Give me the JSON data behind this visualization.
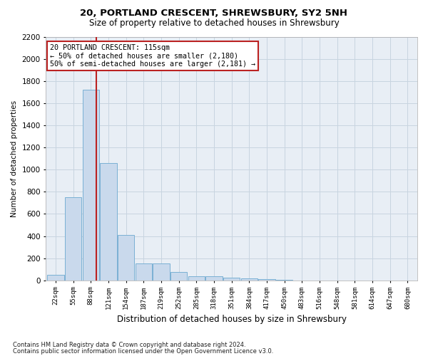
{
  "title1": "20, PORTLAND CRESCENT, SHREWSBURY, SY2 5NH",
  "title2": "Size of property relative to detached houses in Shrewsbury",
  "xlabel": "Distribution of detached houses by size in Shrewsbury",
  "ylabel": "Number of detached properties",
  "annotation_title": "20 PORTLAND CRESCENT: 115sqm",
  "annotation_line1": "← 50% of detached houses are smaller (2,180)",
  "annotation_line2": "50% of semi-detached houses are larger (2,181) →",
  "footer1": "Contains HM Land Registry data © Crown copyright and database right 2024.",
  "footer2": "Contains public sector information licensed under the Open Government Licence v3.0.",
  "categories": [
    "22sqm",
    "55sqm",
    "88sqm",
    "121sqm",
    "154sqm",
    "187sqm",
    "219sqm",
    "252sqm",
    "285sqm",
    "318sqm",
    "351sqm",
    "384sqm",
    "417sqm",
    "450sqm",
    "483sqm",
    "516sqm",
    "548sqm",
    "581sqm",
    "614sqm",
    "647sqm",
    "680sqm"
  ],
  "values": [
    50,
    750,
    1720,
    1060,
    410,
    155,
    155,
    75,
    40,
    35,
    25,
    20,
    10,
    2,
    1,
    1,
    0,
    0,
    0,
    0,
    0
  ],
  "bar_color": "#c9d9ec",
  "bar_edge_color": "#7ab0d4",
  "vline_x_index": 2,
  "vline_x_offset": 0.3,
  "vline_color": "#bb2222",
  "annotation_box_color": "#ffffff",
  "annotation_box_edge": "#bb2222",
  "ylim": [
    0,
    2200
  ],
  "yticks": [
    0,
    200,
    400,
    600,
    800,
    1000,
    1200,
    1400,
    1600,
    1800,
    2000,
    2200
  ],
  "grid_color": "#c8d4e0",
  "background_color": "#ffffff",
  "plot_bg_color": "#e8eef5"
}
